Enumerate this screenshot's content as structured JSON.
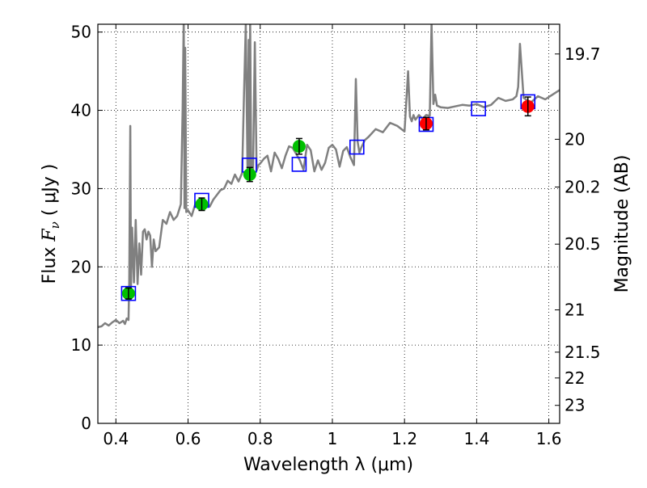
{
  "chart_data": {
    "type": "line",
    "xlabel": "Wavelength  λ (μm)",
    "ylabel": "Flux  F_ν  ( μJy )",
    "ylabel_parts": {
      "pre": "Flux  ",
      "var": "F",
      "sub": "ν",
      "post": "  (  μJy )"
    },
    "y2label": "Magnitude (AB)",
    "xlim": [
      0.35,
      1.63
    ],
    "ylim": [
      0,
      51
    ],
    "grid": true,
    "x_ticks": [
      0.4,
      0.6,
      0.8,
      1.0,
      1.2,
      1.4,
      1.6
    ],
    "x_tick_labels": [
      "0.4",
      "0.6",
      "0.8",
      "1",
      "1.2",
      "1.4",
      "1.6"
    ],
    "y_ticks": [
      0,
      10,
      20,
      30,
      40,
      50
    ],
    "y_tick_labels": [
      "0",
      "10",
      "20",
      "30",
      "40",
      "50"
    ],
    "y2_ticks": [
      {
        "label": "19.7",
        "flux": 47.2
      },
      {
        "label": "20",
        "flux": 36.3
      },
      {
        "label": "20.2",
        "flux": 30.2
      },
      {
        "label": "20.5",
        "flux": 22.9
      },
      {
        "label": "21",
        "flux": 14.5
      },
      {
        "label": "21.5",
        "flux": 9.1
      },
      {
        "label": "22",
        "flux": 5.8
      },
      {
        "label": "23",
        "flux": 2.3
      }
    ],
    "series": [
      {
        "style": "line",
        "color": "#808080",
        "x": [
          0.35,
          0.36,
          0.37,
          0.38,
          0.39,
          0.4,
          0.41,
          0.42,
          0.425,
          0.43,
          0.435,
          0.437,
          0.44,
          0.442,
          0.445,
          0.45,
          0.455,
          0.46,
          0.465,
          0.47,
          0.475,
          0.48,
          0.485,
          0.49,
          0.495,
          0.5,
          0.505,
          0.51,
          0.52,
          0.53,
          0.54,
          0.55,
          0.56,
          0.57,
          0.58,
          0.585,
          0.588,
          0.59,
          0.592,
          0.595,
          0.6,
          0.61,
          0.62,
          0.63,
          0.64,
          0.65,
          0.66,
          0.67,
          0.68,
          0.69,
          0.7,
          0.71,
          0.72,
          0.73,
          0.74,
          0.75,
          0.755,
          0.76,
          0.765,
          0.768,
          0.77,
          0.772,
          0.775,
          0.78,
          0.785,
          0.79,
          0.795,
          0.8,
          0.81,
          0.82,
          0.83,
          0.84,
          0.85,
          0.86,
          0.87,
          0.88,
          0.89,
          0.9,
          0.91,
          0.92,
          0.93,
          0.94,
          0.95,
          0.96,
          0.97,
          0.98,
          0.99,
          1.0,
          1.01,
          1.02,
          1.03,
          1.04,
          1.05,
          1.06,
          1.065,
          1.07,
          1.075,
          1.08,
          1.09,
          1.1,
          1.12,
          1.14,
          1.16,
          1.18,
          1.2,
          1.21,
          1.215,
          1.22,
          1.225,
          1.23,
          1.24,
          1.25,
          1.26,
          1.27,
          1.275,
          1.28,
          1.285,
          1.29,
          1.3,
          1.32,
          1.34,
          1.36,
          1.38,
          1.4,
          1.42,
          1.44,
          1.46,
          1.48,
          1.5,
          1.51,
          1.515,
          1.52,
          1.53,
          1.55,
          1.57,
          1.59,
          1.61,
          1.63
        ],
        "y": [
          12.3,
          12.4,
          12.8,
          12.5,
          12.9,
          13.2,
          12.8,
          13.1,
          12.7,
          13.4,
          13.2,
          18.0,
          38.0,
          17.5,
          25.0,
          18.0,
          26.0,
          17.8,
          23.0,
          19.0,
          24.5,
          24.8,
          23.5,
          24.5,
          24.0,
          20.0,
          23.5,
          22.0,
          22.5,
          26.0,
          25.5,
          27.0,
          26.0,
          26.5,
          28.0,
          40.0,
          52.0,
          27.5,
          48.0,
          27.0,
          27.2,
          26.5,
          28.0,
          28.5,
          27.5,
          28.3,
          27.7,
          28.6,
          29.2,
          29.8,
          30.0,
          31.0,
          30.6,
          31.8,
          30.9,
          32.0,
          42.0,
          51.0,
          32.0,
          49.0,
          31.5,
          52.0,
          32.5,
          31.8,
          48.7,
          32.3,
          33.0,
          33.2,
          33.8,
          34.2,
          32.2,
          34.6,
          33.8,
          32.6,
          34.2,
          35.4,
          35.2,
          34.4,
          33.6,
          32.4,
          35.6,
          34.9,
          32.2,
          33.6,
          32.4,
          33.3,
          35.2,
          35.6,
          35.0,
          32.8,
          34.8,
          35.3,
          34.0,
          33.0,
          44.0,
          36.0,
          34.6,
          35.2,
          36.2,
          36.6,
          37.6,
          37.2,
          38.4,
          38.0,
          37.3,
          45.0,
          39.2,
          38.6,
          39.4,
          38.8,
          39.4,
          38.9,
          39.4,
          39.3,
          51.2,
          40.8,
          42.0,
          40.6,
          40.4,
          40.3,
          40.5,
          40.7,
          40.6,
          40.8,
          40.4,
          40.7,
          41.6,
          41.2,
          41.4,
          41.8,
          43.0,
          48.5,
          41.6,
          41.0,
          41.8,
          41.4,
          42.0,
          42.6
        ]
      },
      {
        "style": "squares",
        "color": "#0000ff",
        "x": [
          0.435,
          0.638,
          0.77,
          0.908,
          1.068,
          1.26,
          1.405,
          1.542
        ],
        "y": [
          16.6,
          28.5,
          33.0,
          33.1,
          35.3,
          38.2,
          40.2,
          41.1
        ]
      },
      {
        "style": "points",
        "color": "#00c000",
        "x": [
          0.435,
          0.638,
          0.771,
          0.908
        ],
        "y": [
          16.6,
          28.0,
          31.8,
          35.4
        ],
        "err": [
          0.7,
          0.8,
          0.9,
          1.0
        ]
      },
      {
        "style": "points",
        "color": "#ff0000",
        "x": [
          1.26,
          1.542
        ],
        "y": [
          38.3,
          40.5
        ],
        "err": [
          0.8,
          1.2
        ]
      }
    ]
  }
}
